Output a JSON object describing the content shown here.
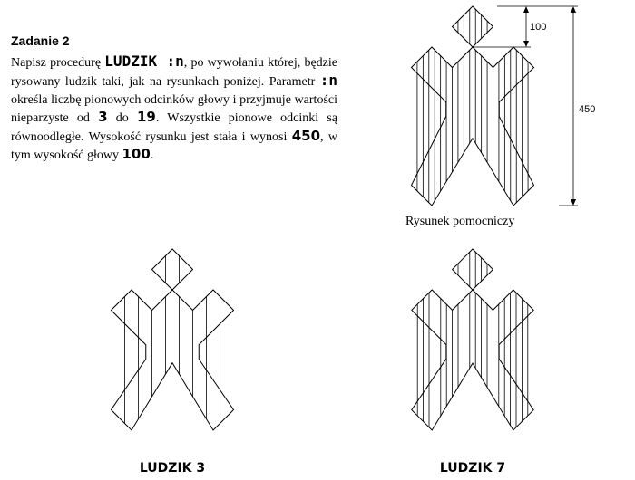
{
  "task": {
    "title": "Zadanie 2",
    "p1": "Napisz procedurę ",
    "proc": "LUDZIK :n",
    "p2": ", po wywołaniu której, będzie rysowany ludzik taki, jak na rysunkach poniżej. Parametr ",
    "param": ":n",
    "p3": " określa liczbę pionowych odcinków głowy i przyjmuje wartości nieparzyste od ",
    "min": "3",
    "p4": " do ",
    "max": "19",
    "p5": ". Wszystkie pionowe odcinki są równoodległe. Wysokość rysunku jest stała i wynosi ",
    "height": "450",
    "p6": ", w tym wysokość głowy ",
    "head": "100",
    "p7": "."
  },
  "figures": {
    "helper": {
      "caption": "Rysunek pomocniczy",
      "dim_head": "100",
      "dim_total": "450",
      "n": 7
    },
    "small": {
      "caption": "LUDZIK 3",
      "n": 3
    },
    "large": {
      "caption": "LUDZIK 7",
      "n": 7
    }
  },
  "colors": {
    "stroke": "#000000",
    "background": "#ffffff"
  }
}
